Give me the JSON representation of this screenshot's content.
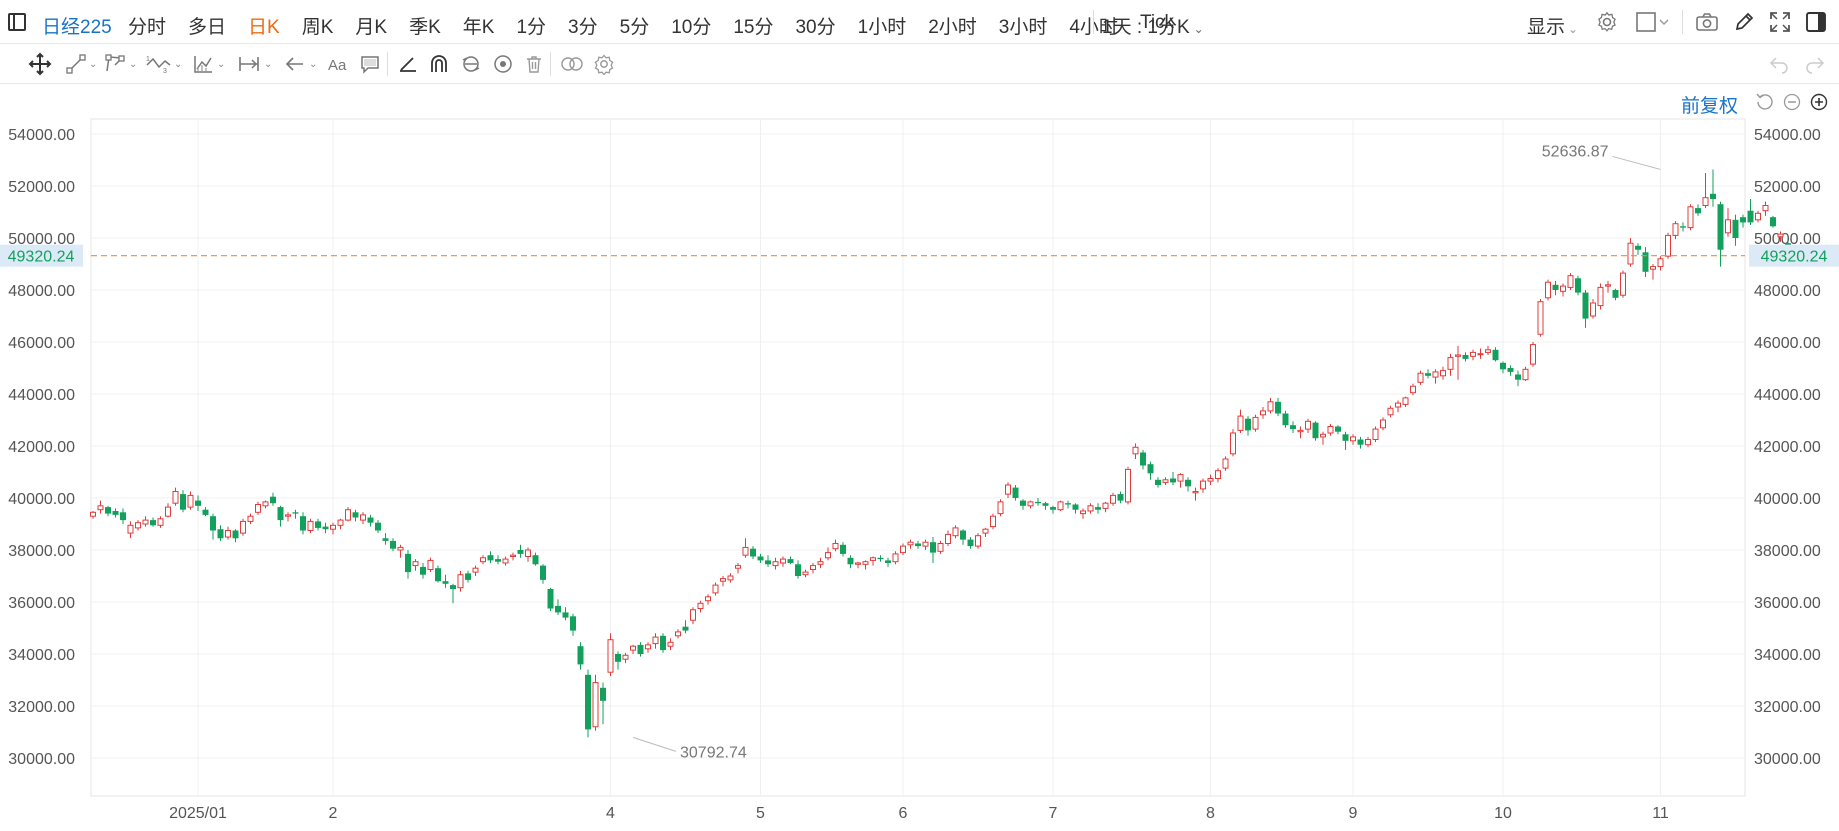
{
  "toolbar": {
    "symbol": "日经225",
    "timeframes": [
      "分时",
      "多日",
      "日K",
      "周K",
      "月K",
      "季K",
      "年K",
      "1分",
      "3分",
      "5分",
      "10分",
      "15分",
      "30分",
      "1小时",
      "2小时",
      "3小时",
      "4小时",
      "Tick"
    ],
    "active_timeframe": "日K",
    "compare_label": "1天 : 1分K",
    "display_label": "显示"
  },
  "chart_header": {
    "adjust_label": "前复权"
  },
  "colors": {
    "up": "#e23b3b",
    "down": "#12a05c",
    "accent": "#1a73c8",
    "active_tab": "#f06a0f",
    "last_price_line": "#f08a3c"
  },
  "chart_data": {
    "type": "candlestick",
    "title": "",
    "ylim": [
      29500,
      54700
    ],
    "y_ticks": [
      54000,
      52000,
      50000,
      48000,
      46000,
      44000,
      42000,
      40000,
      38000,
      36000,
      34000,
      32000,
      30000
    ],
    "y_tick_labels": [
      "54000.00",
      "52000.00",
      "50000.00",
      "48000.00",
      "46000.00",
      "44000.00",
      "42000.00",
      "40000.00",
      "38000.00",
      "36000.00",
      "34000.00",
      "32000.00",
      "30000.00"
    ],
    "x_labels": [
      {
        "label": "2025/01",
        "bar": 14
      },
      {
        "label": "2",
        "bar": 32
      },
      {
        "label": "4",
        "bar": 69
      },
      {
        "label": "5",
        "bar": 89
      },
      {
        "label": "6",
        "bar": 108
      },
      {
        "label": "7",
        "bar": 128
      },
      {
        "label": "8",
        "bar": 149
      },
      {
        "label": "9",
        "bar": 168
      },
      {
        "label": "10",
        "bar": 188
      },
      {
        "label": "11",
        "bar": 209
      }
    ],
    "grid": true,
    "last_price": 49320.24,
    "last_price_label": "49320.24",
    "max_annotation": {
      "value": 52636.87,
      "label": "52636.87",
      "bar": 209
    },
    "min_annotation": {
      "value": 30792.74,
      "label": "30792.74",
      "bar": 72
    },
    "ohlc": [
      [
        39300,
        39500,
        39200,
        39450
      ],
      [
        39550,
        39900,
        39400,
        39700
      ],
      [
        39650,
        39700,
        39300,
        39400
      ],
      [
        39500,
        39600,
        39250,
        39350
      ],
      [
        39450,
        39600,
        39000,
        39150
      ],
      [
        38650,
        39100,
        38450,
        38950
      ],
      [
        38850,
        39150,
        38750,
        39050
      ],
      [
        39000,
        39300,
        38900,
        39150
      ],
      [
        39150,
        39250,
        38900,
        38950
      ],
      [
        38950,
        39300,
        38850,
        39200
      ],
      [
        39300,
        39800,
        39250,
        39650
      ],
      [
        39800,
        40400,
        39700,
        40250
      ],
      [
        40150,
        40300,
        39450,
        39550
      ],
      [
        39650,
        40250,
        39550,
        40100
      ],
      [
        39900,
        40100,
        39500,
        39700
      ],
      [
        39550,
        39650,
        39300,
        39350
      ],
      [
        39300,
        39400,
        38400,
        38750
      ],
      [
        38800,
        38950,
        38350,
        38450
      ],
      [
        38500,
        38900,
        38400,
        38750
      ],
      [
        38750,
        38800,
        38300,
        38450
      ],
      [
        38650,
        39200,
        38550,
        39100
      ],
      [
        39100,
        39400,
        39000,
        39300
      ],
      [
        39450,
        39850,
        39350,
        39750
      ],
      [
        39700,
        39900,
        39600,
        39850
      ],
      [
        40050,
        40200,
        39700,
        39800
      ],
      [
        39650,
        39700,
        38900,
        39150
      ],
      [
        39300,
        39450,
        39100,
        39350
      ],
      [
        39450,
        39550,
        39200,
        39400
      ],
      [
        39300,
        39450,
        38600,
        38750
      ],
      [
        38750,
        39200,
        38650,
        39100
      ],
      [
        39100,
        39200,
        38750,
        38850
      ],
      [
        38900,
        39050,
        38650,
        38800
      ],
      [
        38800,
        39050,
        38600,
        38950
      ],
      [
        38950,
        39200,
        38800,
        39150
      ],
      [
        39150,
        39650,
        39100,
        39550
      ],
      [
        39450,
        39550,
        39100,
        39250
      ],
      [
        39150,
        39450,
        39000,
        39350
      ],
      [
        39250,
        39350,
        38900,
        39050
      ],
      [
        39050,
        39150,
        38650,
        38750
      ],
      [
        38450,
        38650,
        38200,
        38350
      ],
      [
        38350,
        38450,
        37950,
        38050
      ],
      [
        38000,
        38200,
        37700,
        38100
      ],
      [
        37850,
        38000,
        36900,
        37150
      ],
      [
        37400,
        37650,
        37200,
        37550
      ],
      [
        37350,
        37500,
        36900,
        37050
      ],
      [
        37250,
        37700,
        37150,
        37600
      ],
      [
        37300,
        37400,
        36750,
        36800
      ],
      [
        36800,
        37050,
        36550,
        36700
      ],
      [
        36650,
        36700,
        35950,
        36500
      ],
      [
        36550,
        37200,
        36400,
        37050
      ],
      [
        37100,
        37200,
        36750,
        36850
      ],
      [
        37150,
        37400,
        37000,
        37300
      ],
      [
        37550,
        37800,
        37450,
        37700
      ],
      [
        37800,
        37950,
        37500,
        37600
      ],
      [
        37650,
        37800,
        37450,
        37550
      ],
      [
        37500,
        37750,
        37400,
        37650
      ],
      [
        37750,
        37900,
        37600,
        37800
      ],
      [
        38000,
        38200,
        37700,
        37850
      ],
      [
        37750,
        38100,
        37550,
        38000
      ],
      [
        37800,
        37900,
        37400,
        37450
      ],
      [
        37400,
        37450,
        36700,
        36850
      ],
      [
        36500,
        36550,
        35650,
        35750
      ],
      [
        35850,
        36100,
        35500,
        35600
      ],
      [
        35600,
        35800,
        35300,
        35400
      ],
      [
        35450,
        35550,
        34700,
        34900
      ],
      [
        34300,
        34450,
        33400,
        33600
      ],
      [
        33200,
        33400,
        30792.74,
        31100
      ],
      [
        31200,
        33200,
        31050,
        32900
      ],
      [
        32700,
        32900,
        31300,
        32200
      ],
      [
        33300,
        34800,
        33150,
        34550
      ],
      [
        34000,
        34100,
        33400,
        33700
      ],
      [
        33800,
        34050,
        33650,
        33950
      ],
      [
        34150,
        34350,
        34000,
        34300
      ],
      [
        34350,
        34450,
        33900,
        34000
      ],
      [
        34200,
        34450,
        34050,
        34350
      ],
      [
        34400,
        34800,
        34200,
        34650
      ],
      [
        34700,
        34800,
        34050,
        34150
      ],
      [
        34300,
        34600,
        34150,
        34450
      ],
      [
        34700,
        34950,
        34600,
        34850
      ],
      [
        35050,
        35300,
        34800,
        34900
      ],
      [
        35300,
        35800,
        35150,
        35700
      ],
      [
        35750,
        36050,
        35600,
        35950
      ],
      [
        36050,
        36300,
        35900,
        36200
      ],
      [
        36350,
        36750,
        36250,
        36650
      ],
      [
        36800,
        37000,
        36600,
        36900
      ],
      [
        36850,
        37100,
        36750,
        37000
      ],
      [
        37300,
        37500,
        37100,
        37400
      ],
      [
        37800,
        38450,
        37700,
        38100
      ],
      [
        38050,
        38150,
        37650,
        37750
      ],
      [
        37750,
        37850,
        37500,
        37600
      ],
      [
        37600,
        37800,
        37350,
        37450
      ],
      [
        37400,
        37700,
        37250,
        37550
      ],
      [
        37500,
        37750,
        37350,
        37650
      ],
      [
        37650,
        37750,
        37450,
        37500
      ],
      [
        37450,
        37600,
        36900,
        37000
      ],
      [
        37050,
        37250,
        36950,
        37150
      ],
      [
        37250,
        37500,
        37100,
        37400
      ],
      [
        37450,
        37700,
        37300,
        37550
      ],
      [
        37700,
        38100,
        37600,
        37900
      ],
      [
        38050,
        38400,
        37950,
        38250
      ],
      [
        38200,
        38300,
        37750,
        37850
      ],
      [
        37700,
        37800,
        37300,
        37450
      ],
      [
        37450,
        37550,
        37300,
        37500
      ],
      [
        37450,
        37600,
        37250,
        37550
      ],
      [
        37600,
        37750,
        37400,
        37700
      ],
      [
        37700,
        37800,
        37550,
        37650
      ],
      [
        37600,
        37700,
        37350,
        37500
      ],
      [
        37550,
        37950,
        37450,
        37850
      ],
      [
        37900,
        38250,
        37800,
        38150
      ],
      [
        38200,
        38400,
        38050,
        38300
      ],
      [
        38250,
        38350,
        38050,
        38150
      ],
      [
        38150,
        38400,
        38000,
        38300
      ],
      [
        38300,
        38500,
        37500,
        37900
      ],
      [
        37950,
        38350,
        37850,
        38250
      ],
      [
        38250,
        38750,
        38150,
        38600
      ],
      [
        38550,
        38950,
        38450,
        38850
      ],
      [
        38750,
        38800,
        38200,
        38400
      ],
      [
        38400,
        38500,
        38050,
        38150
      ],
      [
        38150,
        38650,
        38050,
        38550
      ],
      [
        38650,
        38850,
        38500,
        38800
      ],
      [
        38900,
        39400,
        38800,
        39300
      ],
      [
        39400,
        39950,
        39300,
        39850
      ],
      [
        40150,
        40600,
        40000,
        40500
      ],
      [
        40400,
        40500,
        39900,
        40000
      ],
      [
        39900,
        39950,
        39550,
        39700
      ],
      [
        39700,
        39900,
        39600,
        39850
      ],
      [
        39850,
        40000,
        39700,
        39800
      ],
      [
        39800,
        39850,
        39550,
        39700
      ],
      [
        39650,
        39700,
        39400,
        39550
      ],
      [
        39550,
        39900,
        39500,
        39850
      ],
      [
        39800,
        39900,
        39600,
        39750
      ],
      [
        39750,
        39800,
        39400,
        39550
      ],
      [
        39400,
        39600,
        39200,
        39500
      ],
      [
        39500,
        39800,
        39400,
        39700
      ],
      [
        39650,
        39800,
        39400,
        39550
      ],
      [
        39600,
        39850,
        39450,
        39800
      ],
      [
        39800,
        40200,
        39700,
        40100
      ],
      [
        40150,
        40250,
        39800,
        39900
      ],
      [
        39850,
        41200,
        39750,
        41100
      ],
      [
        41700,
        42100,
        41500,
        41950
      ],
      [
        41750,
        41850,
        41100,
        41250
      ],
      [
        41300,
        41400,
        40700,
        40950
      ],
      [
        40700,
        40800,
        40400,
        40500
      ],
      [
        40600,
        40800,
        40500,
        40700
      ],
      [
        40750,
        41000,
        40500,
        40600
      ],
      [
        40650,
        40950,
        40400,
        40900
      ],
      [
        40700,
        40800,
        40250,
        40450
      ],
      [
        40200,
        40400,
        39900,
        40250
      ],
      [
        40350,
        40750,
        40200,
        40650
      ],
      [
        40650,
        40900,
        40500,
        40750
      ],
      [
        40750,
        41150,
        40600,
        41050
      ],
      [
        41150,
        41600,
        41050,
        41500
      ],
      [
        41700,
        42650,
        41600,
        42500
      ],
      [
        42600,
        43400,
        42500,
        43150
      ],
      [
        43050,
        43150,
        42400,
        42600
      ],
      [
        42650,
        43200,
        42550,
        43100
      ],
      [
        43200,
        43500,
        43050,
        43350
      ],
      [
        43350,
        43850,
        43250,
        43700
      ],
      [
        43700,
        43850,
        43150,
        43250
      ],
      [
        43250,
        43350,
        42700,
        42800
      ],
      [
        42800,
        42950,
        42500,
        42650
      ],
      [
        42550,
        42750,
        42300,
        42600
      ],
      [
        42650,
        43050,
        42500,
        42950
      ],
      [
        42900,
        42950,
        42200,
        42300
      ],
      [
        42350,
        42550,
        42050,
        42450
      ],
      [
        42500,
        42850,
        42400,
        42750
      ],
      [
        42750,
        42800,
        42450,
        42550
      ],
      [
        42450,
        42550,
        41850,
        42200
      ],
      [
        42200,
        42450,
        42050,
        42350
      ],
      [
        42250,
        42350,
        41900,
        42050
      ],
      [
        42050,
        42350,
        41950,
        42250
      ],
      [
        42250,
        42750,
        42150,
        42650
      ],
      [
        42700,
        43100,
        42600,
        43000
      ],
      [
        43200,
        43550,
        43100,
        43450
      ],
      [
        43500,
        43750,
        43300,
        43650
      ],
      [
        43600,
        43900,
        43500,
        43850
      ],
      [
        44050,
        44400,
        43950,
        44300
      ],
      [
        44450,
        44900,
        44350,
        44800
      ],
      [
        44800,
        44950,
        44600,
        44700
      ],
      [
        44650,
        44950,
        44400,
        44850
      ],
      [
        44700,
        45050,
        44550,
        44900
      ],
      [
        44950,
        45550,
        44700,
        45400
      ],
      [
        45450,
        45850,
        44550,
        45500
      ],
      [
        45500,
        45600,
        45250,
        45350
      ],
      [
        45450,
        45700,
        45300,
        45600
      ],
      [
        45550,
        45750,
        45350,
        45550
      ],
      [
        45600,
        45850,
        45500,
        45700
      ],
      [
        45700,
        45800,
        45250,
        45300
      ],
      [
        45200,
        45250,
        44800,
        44950
      ],
      [
        45000,
        45100,
        44700,
        44850
      ],
      [
        44750,
        44900,
        44300,
        44550
      ],
      [
        44550,
        45050,
        44500,
        44950
      ],
      [
        45150,
        46000,
        45050,
        45900
      ],
      [
        46300,
        47650,
        46200,
        47550
      ],
      [
        47700,
        48400,
        47600,
        48300
      ],
      [
        48200,
        48350,
        47800,
        48000
      ],
      [
        47950,
        48250,
        47750,
        48150
      ],
      [
        48100,
        48650,
        48000,
        48550
      ],
      [
        48450,
        48550,
        47800,
        47900
      ],
      [
        47900,
        48000,
        46550,
        46900
      ],
      [
        47000,
        47650,
        46900,
        47500
      ],
      [
        47400,
        48250,
        47250,
        48100
      ],
      [
        48150,
        48350,
        47900,
        48200
      ],
      [
        48000,
        48050,
        47600,
        47700
      ],
      [
        47800,
        48750,
        47700,
        48650
      ],
      [
        49000,
        50000,
        48900,
        49800
      ],
      [
        49700,
        49800,
        49350,
        49550
      ],
      [
        49450,
        49650,
        48500,
        48700
      ],
      [
        48800,
        49000,
        48400,
        48900
      ],
      [
        48900,
        49300,
        48750,
        49200
      ],
      [
        49300,
        50200,
        49200,
        50100
      ],
      [
        50100,
        50650,
        49950,
        50550
      ],
      [
        50450,
        50600,
        50250,
        50400
      ],
      [
        50400,
        51300,
        50300,
        51200
      ],
      [
        51150,
        51300,
        50850,
        50950
      ],
      [
        51250,
        52500,
        51150,
        51550
      ],
      [
        51700,
        52636.87,
        51200,
        51500
      ],
      [
        51300,
        51400,
        48900,
        49550
      ],
      [
        50200,
        51150,
        50050,
        50700
      ],
      [
        50700,
        50900,
        49700,
        50000
      ],
      [
        50800,
        50900,
        50400,
        50600
      ],
      [
        51050,
        51500,
        50500,
        50600
      ],
      [
        50700,
        51050,
        50600,
        50950
      ],
      [
        51050,
        51400,
        50850,
        51250
      ],
      [
        50800,
        50850,
        50400,
        50450
      ],
      [
        50050,
        50250,
        49850,
        50150
      ],
      [
        49800,
        49900,
        49150,
        49320.24
      ]
    ]
  }
}
